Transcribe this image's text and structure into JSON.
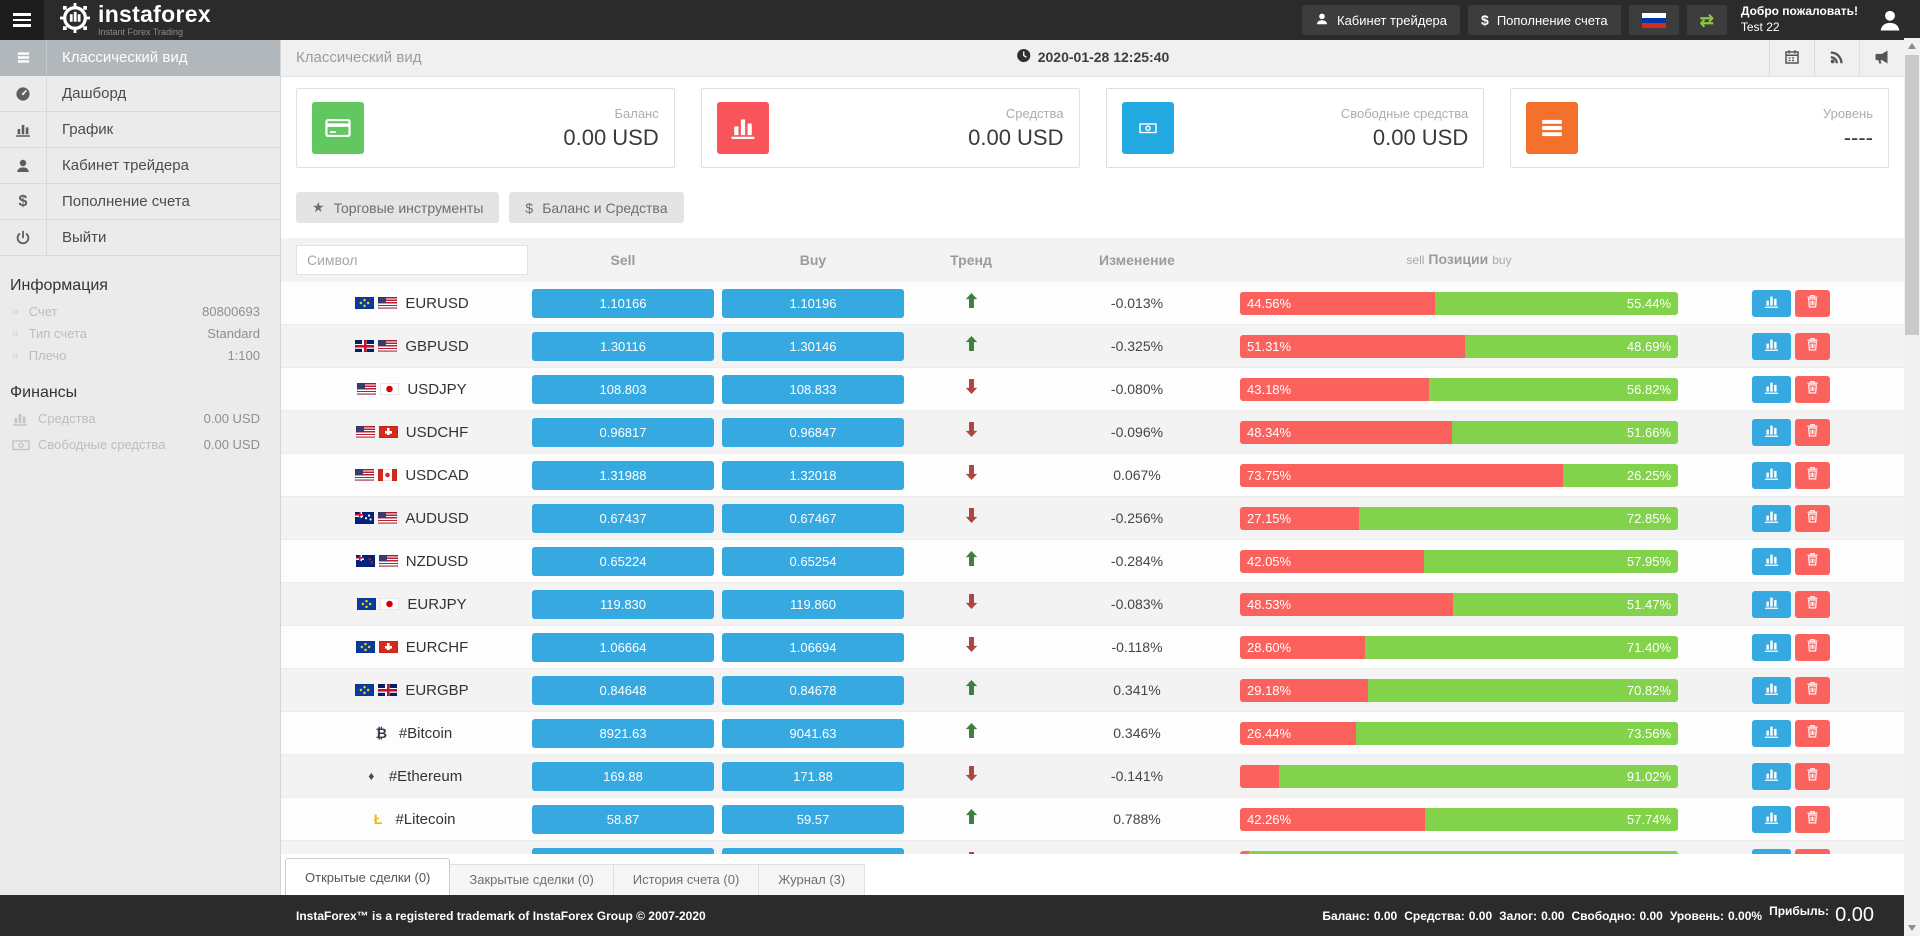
{
  "header": {
    "logo_text": "instaforex",
    "logo_tagline": "Instant Forex Trading",
    "trader_cabinet_label": "Кабинет трейдера",
    "deposit_label": "Пополнение счета",
    "welcome_line1": "Добро пожаловать!",
    "welcome_line2": "Test 22"
  },
  "sidebar": {
    "items": [
      {
        "label": "Классический вид",
        "icon": "list-icon",
        "active": true
      },
      {
        "label": "Дашборд",
        "icon": "dashboard-icon",
        "active": false
      },
      {
        "label": "График",
        "icon": "chart-icon",
        "active": false
      },
      {
        "label": "Кабинет трейдера",
        "icon": "user-icon",
        "active": false
      },
      {
        "label": "Пополнение счета",
        "icon": "dollar-icon",
        "active": false
      },
      {
        "label": "Выйти",
        "icon": "power-icon",
        "active": false
      }
    ],
    "info": {
      "title": "Информация",
      "rows": [
        {
          "label": "Счет",
          "value": "80800693"
        },
        {
          "label": "Тип счета",
          "value": "Standard"
        },
        {
          "label": "Плечо",
          "value": "1:100"
        }
      ]
    },
    "finance": {
      "title": "Финансы",
      "rows": [
        {
          "label": "Средства",
          "value": "0.00 USD",
          "icon": "chart-icon"
        },
        {
          "label": "Свободные средства",
          "value": "0.00 USD",
          "icon": "banknote-icon"
        }
      ]
    }
  },
  "topbar": {
    "breadcrumb": "Классический вид",
    "timestamp": "2020-01-28 12:25:40",
    "icons": [
      "calendar-icon",
      "rss-icon",
      "megaphone-icon"
    ]
  },
  "cards": [
    {
      "label": "Баланс",
      "value": "0.00 USD",
      "icon": "credit-card-icon",
      "color": "#61c861"
    },
    {
      "label": "Средства",
      "value": "0.00 USD",
      "icon": "bar-chart-icon",
      "color": "#f9545b"
    },
    {
      "label": "Свободные средства",
      "value": "0.00 USD",
      "icon": "banknote-icon",
      "color": "#23a9e1"
    },
    {
      "label": "Уровень",
      "value": "----",
      "icon": "menu-icon",
      "color": "#f3712d"
    }
  ],
  "filters": [
    {
      "label": "Торговые инструменты",
      "icon": "star-icon"
    },
    {
      "label": "Баланс и Средства",
      "icon": "dollar-icon"
    }
  ],
  "table": {
    "search_placeholder": "Символ",
    "headers": {
      "sell": "Sell",
      "buy": "Buy",
      "trend": "Тренд",
      "change": "Изменение",
      "positions_sell": "sell",
      "positions": "Позиции",
      "positions_buy": "buy"
    },
    "rows": [
      {
        "symbol": "EURUSD",
        "flags": [
          "eu",
          "us"
        ],
        "sell": "1.10166",
        "buy": "1.10196",
        "trend": "up",
        "change": "-0.013%",
        "sell_pct": 44.56,
        "sell_label": "44.56%",
        "buy_label": "55.44%"
      },
      {
        "symbol": "GBPUSD",
        "flags": [
          "gb",
          "us"
        ],
        "sell": "1.30116",
        "buy": "1.30146",
        "trend": "up",
        "change": "-0.325%",
        "sell_pct": 51.31,
        "sell_label": "51.31%",
        "buy_label": "48.69%"
      },
      {
        "symbol": "USDJPY",
        "flags": [
          "us",
          "jp"
        ],
        "sell": "108.803",
        "buy": "108.833",
        "trend": "down",
        "change": "-0.080%",
        "sell_pct": 43.18,
        "sell_label": "43.18%",
        "buy_label": "56.82%"
      },
      {
        "symbol": "USDCHF",
        "flags": [
          "us",
          "ch"
        ],
        "sell": "0.96817",
        "buy": "0.96847",
        "trend": "down",
        "change": "-0.096%",
        "sell_pct": 48.34,
        "sell_label": "48.34%",
        "buy_label": "51.66%"
      },
      {
        "symbol": "USDCAD",
        "flags": [
          "us",
          "ca"
        ],
        "sell": "1.31988",
        "buy": "1.32018",
        "trend": "down",
        "change": "0.067%",
        "sell_pct": 73.75,
        "sell_label": "73.75%",
        "buy_label": "26.25%"
      },
      {
        "symbol": "AUDUSD",
        "flags": [
          "au",
          "us"
        ],
        "sell": "0.67437",
        "buy": "0.67467",
        "trend": "down",
        "change": "-0.256%",
        "sell_pct": 27.15,
        "sell_label": "27.15%",
        "buy_label": "72.85%"
      },
      {
        "symbol": "NZDUSD",
        "flags": [
          "nz",
          "us"
        ],
        "sell": "0.65224",
        "buy": "0.65254",
        "trend": "up",
        "change": "-0.284%",
        "sell_pct": 42.05,
        "sell_label": "42.05%",
        "buy_label": "57.95%"
      },
      {
        "symbol": "EURJPY",
        "flags": [
          "eu",
          "jp"
        ],
        "sell": "119.830",
        "buy": "119.860",
        "trend": "down",
        "change": "-0.083%",
        "sell_pct": 48.53,
        "sell_label": "48.53%",
        "buy_label": "51.47%"
      },
      {
        "symbol": "EURCHF",
        "flags": [
          "eu",
          "ch"
        ],
        "sell": "1.06664",
        "buy": "1.06694",
        "trend": "down",
        "change": "-0.118%",
        "sell_pct": 28.6,
        "sell_label": "28.60%",
        "buy_label": "71.40%"
      },
      {
        "symbol": "EURGBP",
        "flags": [
          "eu",
          "gb"
        ],
        "sell": "0.84648",
        "buy": "0.84678",
        "trend": "up",
        "change": "0.341%",
        "sell_pct": 29.18,
        "sell_label": "29.18%",
        "buy_label": "70.82%"
      },
      {
        "symbol": "#Bitcoin",
        "crypto": "bitcoin",
        "sell": "8921.63",
        "buy": "9041.63",
        "trend": "up",
        "change": "0.346%",
        "sell_pct": 26.44,
        "sell_label": "26.44%",
        "buy_label": "73.56%"
      },
      {
        "symbol": "#Ethereum",
        "crypto": "ethereum",
        "sell": "169.88",
        "buy": "171.88",
        "trend": "down",
        "change": "-0.141%",
        "sell_pct": 8.98,
        "sell_label": "",
        "buy_label": "91.02%"
      },
      {
        "symbol": "#Litecoin",
        "crypto": "litecoin",
        "sell": "58.87",
        "buy": "59.57",
        "trend": "up",
        "change": "0.788%",
        "sell_pct": 42.26,
        "sell_label": "42.26%",
        "buy_label": "57.74%"
      },
      {
        "symbol": "",
        "crypto": "ripple",
        "sell": "",
        "buy": "",
        "trend": "down",
        "change": "",
        "sell_pct": 2,
        "sell_label": "",
        "buy_label": "",
        "partial": true
      }
    ]
  },
  "tabs": [
    {
      "label": "Открытые сделки (0)",
      "active": true
    },
    {
      "label": "Закрытые сделки (0)",
      "active": false
    },
    {
      "label": "История счета (0)",
      "active": false
    },
    {
      "label": "Журнал (3)",
      "active": false
    }
  ],
  "footer": {
    "copyright": "InstaForex™ is a registered trademark of InstaForex Group © 2007-2020",
    "stats": [
      {
        "label": "Баланс:",
        "value": "0.00"
      },
      {
        "label": "Средства:",
        "value": "0.00"
      },
      {
        "label": "Залог:",
        "value": "0.00"
      },
      {
        "label": "Свободно:",
        "value": "0.00"
      },
      {
        "label": "Уровень:",
        "value": "0.00%"
      }
    ],
    "profit_label": "Прибыль:",
    "profit_value": "0.00"
  },
  "colors": {
    "header_dark": "#2b2b2b",
    "accent_blue": "#36a9e1",
    "sell_red": "#fb615d",
    "buy_green": "#82d24b",
    "swap_green": "#8dc63f",
    "sidebar_active": "#b1b7ba"
  }
}
